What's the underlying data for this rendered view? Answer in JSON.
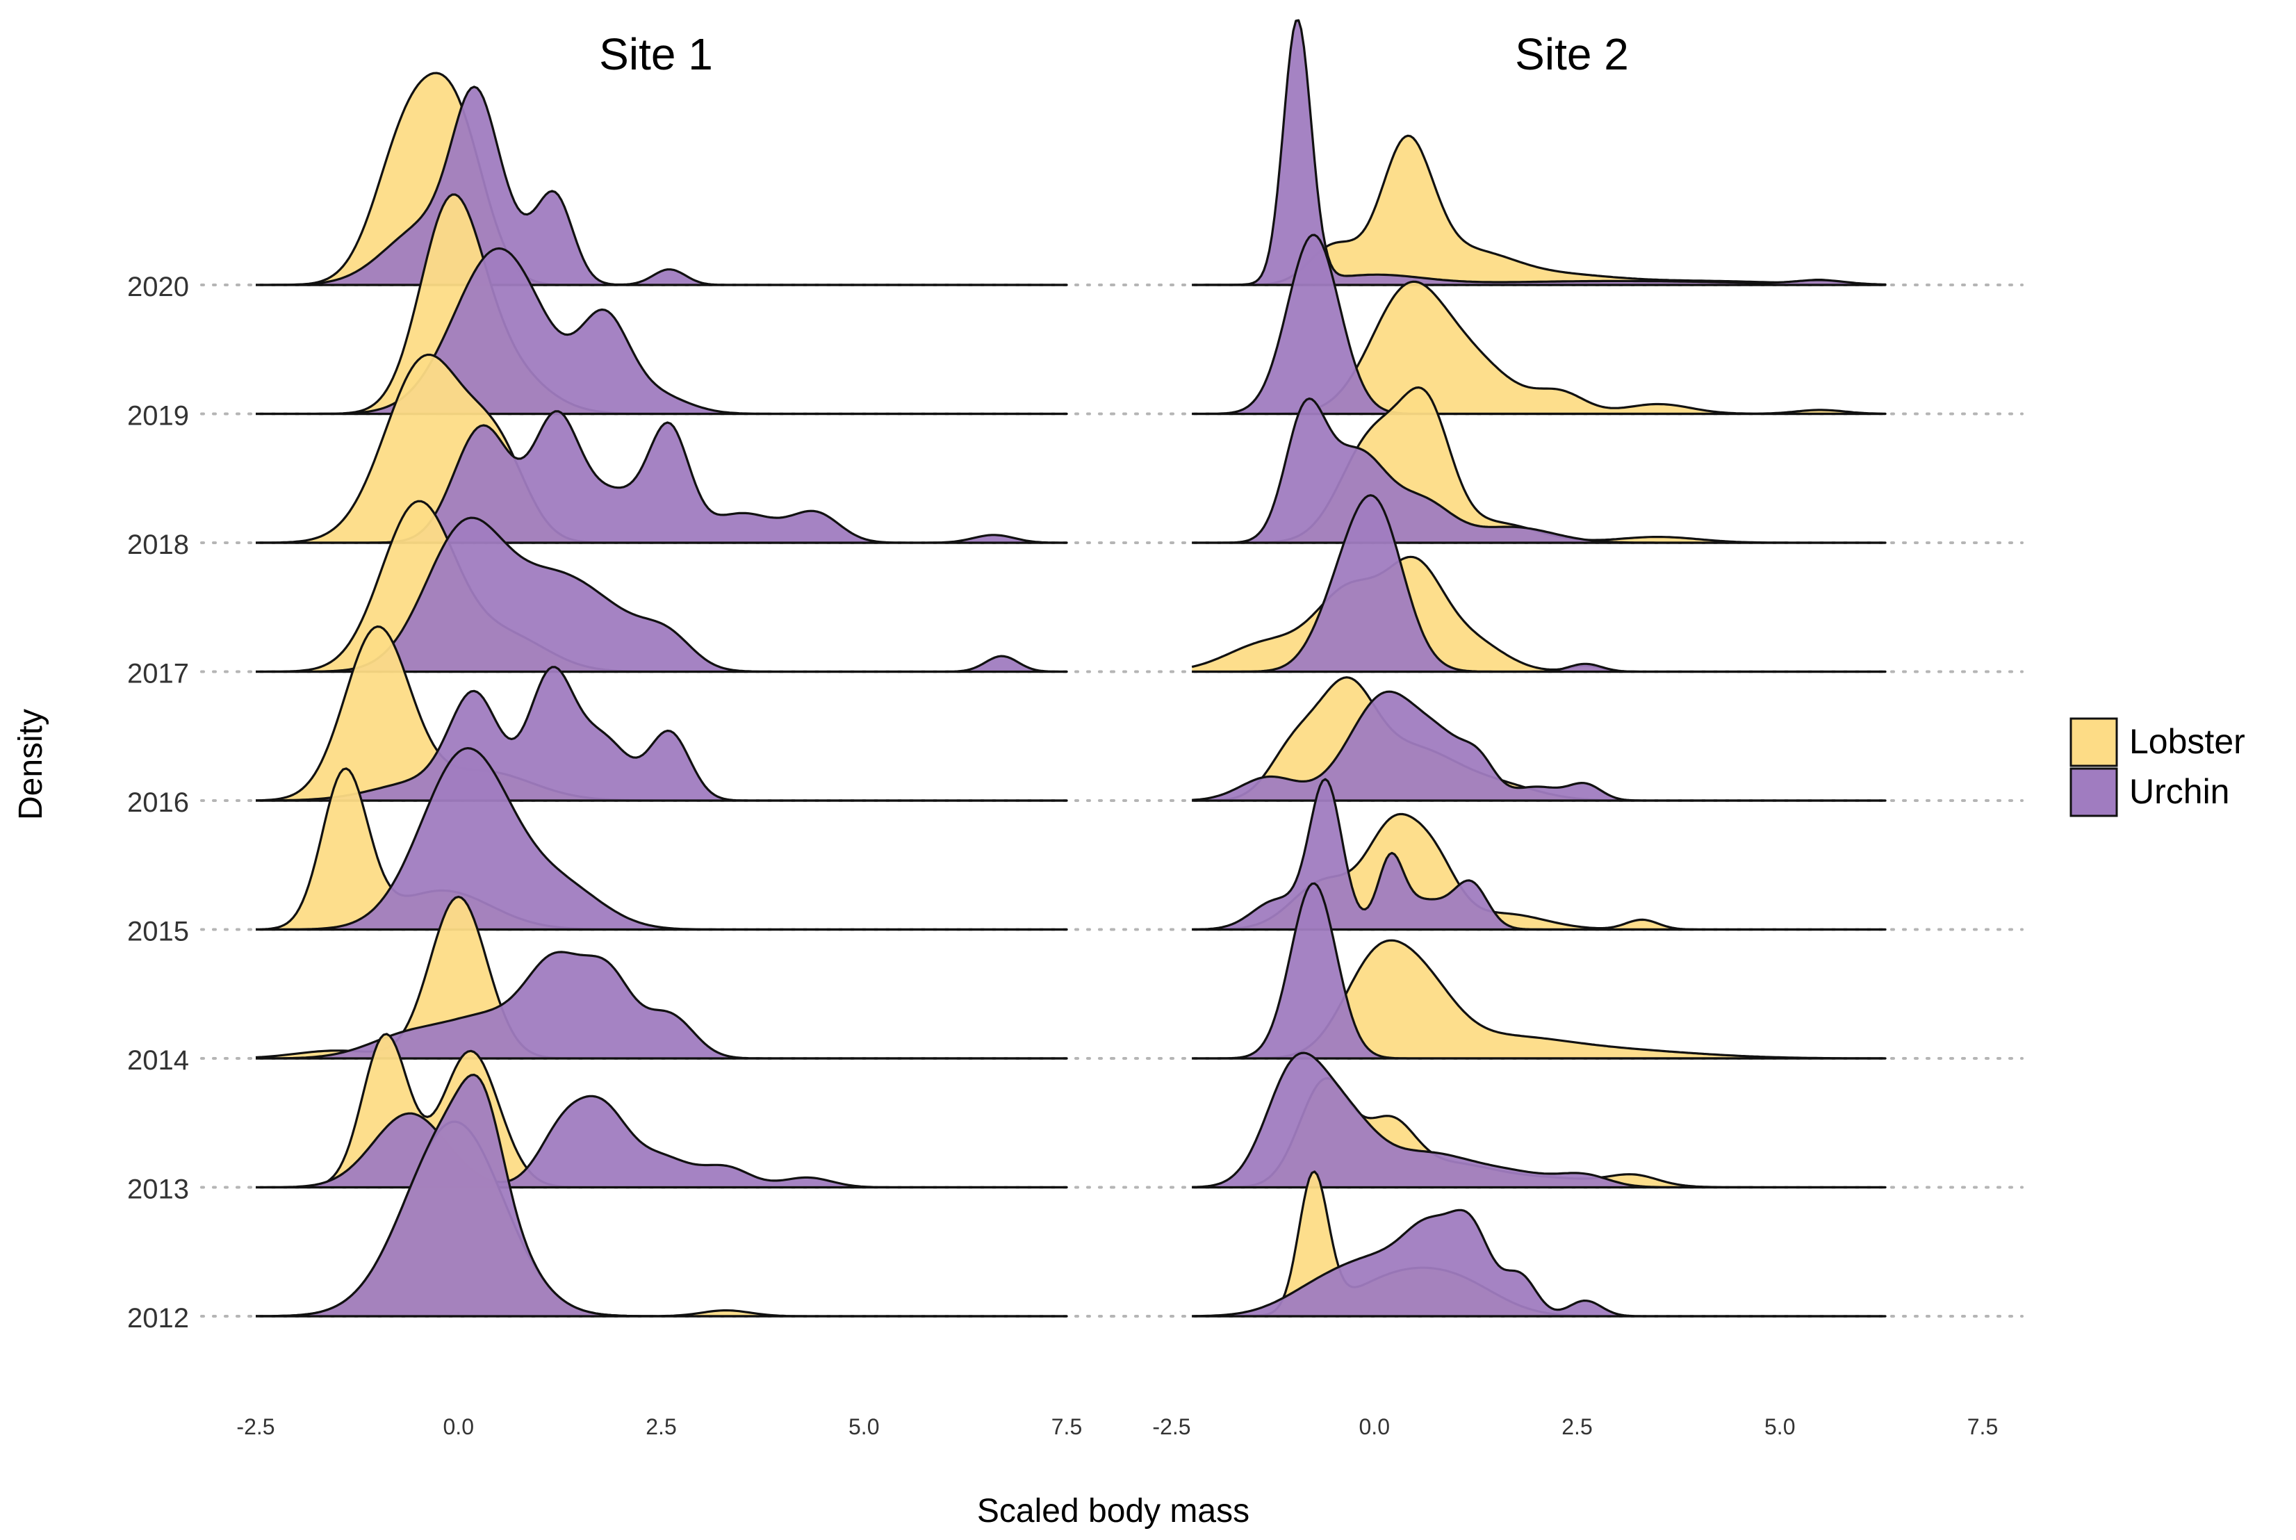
{
  "chart_data": {
    "type": "ridgeline-density",
    "facets": [
      "Site 1",
      "Site 2"
    ],
    "xlabel": "Scaled body mass",
    "ylabel": "Density",
    "xlim": [
      -2.5,
      7.5
    ],
    "x_ticks": [
      "-2.5",
      "0.0",
      "2.5",
      "5.0",
      "7.5"
    ],
    "y_categories": [
      "2012",
      "2013",
      "2014",
      "2015",
      "2016",
      "2017",
      "2018",
      "2019",
      "2020"
    ],
    "legend": {
      "position": "right",
      "entries": [
        {
          "name": "Lobster",
          "color": "#FDDC86"
        },
        {
          "name": "Urchin",
          "color": "#A07CC0"
        }
      ]
    },
    "colors": {
      "Lobster": "#FDDC86",
      "Urchin": "#A07CC0",
      "outline": "#111111"
    },
    "opacity": 0.95,
    "series": [
      {
        "site": 0,
        "year": "2012",
        "species": "Lobster",
        "range": [
          -2.5,
          7.5
        ],
        "comps": [
          [
            -0.05,
            0.6,
            1.0
          ],
          [
            3.3,
            0.3,
            0.03
          ]
        ]
      },
      {
        "site": 0,
        "year": "2012",
        "species": "Urchin",
        "range": [
          -2.5,
          7.5
        ],
        "comps": [
          [
            -0.05,
            0.6,
            1.0
          ],
          [
            0.3,
            0.25,
            0.35
          ]
        ]
      },
      {
        "site": 0,
        "year": "2013",
        "species": "Lobster",
        "range": [
          -2.5,
          7.5
        ],
        "comps": [
          [
            -0.9,
            0.28,
            0.78
          ],
          [
            0.15,
            0.35,
            0.7
          ]
        ]
      },
      {
        "site": 0,
        "year": "2013",
        "species": "Urchin",
        "range": [
          -2.5,
          7.5
        ],
        "comps": [
          [
            -0.6,
            0.45,
            0.38
          ],
          [
            1.3,
            0.3,
            0.3
          ],
          [
            1.8,
            0.3,
            0.35
          ],
          [
            2.5,
            0.35,
            0.15
          ],
          [
            3.3,
            0.3,
            0.1
          ],
          [
            4.3,
            0.3,
            0.05
          ]
        ]
      },
      {
        "site": 0,
        "year": "2014",
        "species": "Lobster",
        "range": [
          -2.5,
          7.5
        ],
        "comps": [
          [
            -1.5,
            0.5,
            0.04
          ],
          [
            0.0,
            0.35,
            0.83
          ]
        ]
      },
      {
        "site": 0,
        "year": "2014",
        "species": "Urchin",
        "range": [
          -2.5,
          7.5
        ],
        "comps": [
          [
            -0.6,
            0.5,
            0.12
          ],
          [
            0.4,
            0.5,
            0.2
          ],
          [
            1.2,
            0.35,
            0.45
          ],
          [
            1.85,
            0.3,
            0.4
          ],
          [
            2.6,
            0.3,
            0.22
          ]
        ]
      },
      {
        "site": 0,
        "year": "2015",
        "species": "Lobster",
        "range": [
          -2.5,
          7.5
        ],
        "comps": [
          [
            -1.4,
            0.28,
            0.8
          ],
          [
            -0.2,
            0.6,
            0.2
          ]
        ]
      },
      {
        "site": 0,
        "year": "2015",
        "species": "Urchin",
        "range": [
          -2.5,
          7.5
        ],
        "comps": [
          [
            0.1,
            0.55,
            0.92
          ],
          [
            1.3,
            0.5,
            0.2
          ]
        ]
      },
      {
        "site": 0,
        "year": "2016",
        "species": "Lobster",
        "range": [
          -2.5,
          7.5
        ],
        "comps": [
          [
            -1.0,
            0.4,
            0.88
          ],
          [
            0.3,
            0.6,
            0.15
          ]
        ]
      },
      {
        "site": 0,
        "year": "2016",
        "species": "Urchin",
        "range": [
          -2.5,
          7.5
        ],
        "comps": [
          [
            -0.4,
            0.6,
            0.1
          ],
          [
            0.2,
            0.3,
            0.5
          ],
          [
            1.15,
            0.28,
            0.65
          ],
          [
            1.8,
            0.3,
            0.3
          ],
          [
            2.6,
            0.25,
            0.35
          ]
        ]
      },
      {
        "site": 0,
        "year": "2017",
        "species": "Lobster",
        "range": [
          -2.5,
          7.5
        ],
        "comps": [
          [
            -0.5,
            0.45,
            0.86
          ],
          [
            0.6,
            0.5,
            0.18
          ]
        ]
      },
      {
        "site": 0,
        "year": "2017",
        "species": "Urchin",
        "range": [
          -2.5,
          7.5
        ],
        "comps": [
          [
            0.1,
            0.5,
            0.75
          ],
          [
            1.2,
            0.5,
            0.4
          ],
          [
            2.0,
            0.5,
            0.2
          ],
          [
            2.6,
            0.3,
            0.12
          ],
          [
            6.7,
            0.2,
            0.08
          ]
        ]
      },
      {
        "site": 0,
        "year": "2018",
        "species": "Lobster",
        "range": [
          -2.5,
          7.5
        ],
        "comps": [
          [
            -0.4,
            0.5,
            0.95
          ],
          [
            0.5,
            0.35,
            0.4
          ]
        ]
      },
      {
        "site": 0,
        "year": "2018",
        "species": "Urchin",
        "range": [
          -2.5,
          7.5
        ],
        "comps": [
          [
            0.3,
            0.35,
            0.6
          ],
          [
            1.2,
            0.28,
            0.6
          ],
          [
            2.6,
            0.25,
            0.55
          ],
          [
            1.9,
            0.4,
            0.25
          ],
          [
            3.5,
            0.4,
            0.15
          ],
          [
            4.4,
            0.3,
            0.15
          ],
          [
            6.6,
            0.25,
            0.04
          ]
        ]
      },
      {
        "site": 0,
        "year": "2019",
        "species": "Lobster",
        "range": [
          -2.5,
          7.5
        ],
        "comps": [
          [
            -0.1,
            0.38,
            1.0
          ],
          [
            0.5,
            0.5,
            0.25
          ]
        ]
      },
      {
        "site": 0,
        "year": "2019",
        "species": "Urchin",
        "range": [
          -2.5,
          7.5
        ],
        "comps": [
          [
            0.5,
            0.55,
            0.85
          ],
          [
            1.8,
            0.3,
            0.45
          ],
          [
            2.4,
            0.4,
            0.1
          ]
        ]
      },
      {
        "site": 0,
        "year": "2020",
        "species": "Lobster",
        "range": [
          -2.5,
          7.5
        ],
        "comps": [
          [
            -0.6,
            0.4,
            0.8
          ],
          [
            0.0,
            0.35,
            0.7
          ]
        ]
      },
      {
        "site": 0,
        "year": "2020",
        "species": "Urchin",
        "range": [
          -2.5,
          7.5
        ],
        "comps": [
          [
            -0.4,
            0.5,
            0.3
          ],
          [
            0.2,
            0.28,
            0.8
          ],
          [
            1.2,
            0.22,
            0.4
          ],
          [
            0.7,
            0.35,
            0.2
          ],
          [
            2.6,
            0.2,
            0.08
          ]
        ]
      },
      {
        "site": 1,
        "year": "2012",
        "species": "Lobster",
        "range": [
          -2.25,
          6.3
        ],
        "comps": [
          [
            -0.75,
            0.18,
            0.7
          ],
          [
            0.3,
            0.6,
            0.2
          ],
          [
            1.1,
            0.5,
            0.12
          ]
        ]
      },
      {
        "site": 1,
        "year": "2012",
        "species": "Urchin",
        "range": [
          -2.25,
          6.3
        ],
        "comps": [
          [
            -0.6,
            0.5,
            0.15
          ],
          [
            0.2,
            0.5,
            0.25
          ],
          [
            0.7,
            0.3,
            0.3
          ],
          [
            1.2,
            0.25,
            0.4
          ],
          [
            1.8,
            0.2,
            0.2
          ],
          [
            2.6,
            0.2,
            0.08
          ]
        ]
      },
      {
        "site": 1,
        "year": "2013",
        "species": "Lobster",
        "range": [
          -2.25,
          6.3
        ],
        "comps": [
          [
            -0.6,
            0.32,
            0.55
          ],
          [
            0.2,
            0.3,
            0.3
          ],
          [
            0.9,
            0.5,
            0.1
          ],
          [
            2.0,
            0.8,
            0.05
          ],
          [
            3.2,
            0.3,
            0.05
          ]
        ]
      },
      {
        "site": 1,
        "year": "2013",
        "species": "Urchin",
        "range": [
          -2.25,
          6.3
        ],
        "comps": [
          [
            -1.0,
            0.35,
            0.55
          ],
          [
            -0.4,
            0.4,
            0.35
          ],
          [
            0.6,
            0.5,
            0.15
          ],
          [
            1.6,
            0.6,
            0.08
          ],
          [
            2.6,
            0.3,
            0.05
          ]
        ]
      },
      {
        "site": 1,
        "year": "2014",
        "species": "Lobster",
        "range": [
          -2.25,
          6.3
        ],
        "comps": [
          [
            0.0,
            0.4,
            0.45
          ],
          [
            0.6,
            0.4,
            0.3
          ],
          [
            1.5,
            0.8,
            0.1
          ],
          [
            3.0,
            1.0,
            0.04
          ]
        ]
      },
      {
        "site": 1,
        "year": "2014",
        "species": "Urchin",
        "range": [
          -2.25,
          6.3
        ],
        "comps": [
          [
            -0.75,
            0.28,
            0.9
          ]
        ]
      },
      {
        "site": 1,
        "year": "2015",
        "species": "Lobster",
        "range": [
          -2.25,
          6.3
        ],
        "comps": [
          [
            -0.6,
            0.4,
            0.25
          ],
          [
            0.2,
            0.3,
            0.45
          ],
          [
            0.7,
            0.3,
            0.35
          ],
          [
            1.6,
            0.5,
            0.08
          ],
          [
            3.3,
            0.2,
            0.05
          ]
        ]
      },
      {
        "site": 1,
        "year": "2015",
        "species": "Urchin",
        "range": [
          -2.25,
          6.3
        ],
        "comps": [
          [
            -1.2,
            0.3,
            0.15
          ],
          [
            -0.6,
            0.2,
            0.75
          ],
          [
            0.2,
            0.15,
            0.3
          ],
          [
            1.2,
            0.2,
            0.2
          ],
          [
            0.6,
            0.4,
            0.15
          ]
        ]
      },
      {
        "site": 1,
        "year": "2016",
        "species": "Lobster",
        "range": [
          -2.25,
          6.3
        ],
        "comps": [
          [
            -1.0,
            0.3,
            0.25
          ],
          [
            -0.35,
            0.35,
            0.55
          ],
          [
            0.5,
            0.5,
            0.25
          ],
          [
            1.5,
            0.5,
            0.08
          ]
        ]
      },
      {
        "site": 1,
        "year": "2016",
        "species": "Urchin",
        "range": [
          -2.25,
          6.3
        ],
        "comps": [
          [
            -1.3,
            0.35,
            0.12
          ],
          [
            0.15,
            0.45,
            0.55
          ],
          [
            0.9,
            0.3,
            0.2
          ],
          [
            1.3,
            0.2,
            0.15
          ],
          [
            2.0,
            0.3,
            0.07
          ],
          [
            2.6,
            0.2,
            0.08
          ]
        ]
      },
      {
        "site": 1,
        "year": "2017",
        "species": "Lobster",
        "range": [
          -2.25,
          6.3
        ],
        "comps": [
          [
            -1.3,
            0.5,
            0.15
          ],
          [
            -0.3,
            0.4,
            0.4
          ],
          [
            0.5,
            0.35,
            0.5
          ],
          [
            1.2,
            0.4,
            0.15
          ],
          [
            2.6,
            0.2,
            0.03
          ]
        ]
      },
      {
        "site": 1,
        "year": "2017",
        "species": "Urchin",
        "range": [
          -2.25,
          6.3
        ],
        "comps": [
          [
            0.0,
            0.35,
            0.85
          ],
          [
            -0.5,
            0.3,
            0.2
          ],
          [
            2.6,
            0.2,
            0.04
          ]
        ]
      },
      {
        "site": 1,
        "year": "2018",
        "species": "Lobster",
        "range": [
          -2.25,
          6.3
        ],
        "comps": [
          [
            0.0,
            0.4,
            0.55
          ],
          [
            0.65,
            0.3,
            0.6
          ],
          [
            1.5,
            0.5,
            0.1
          ],
          [
            3.5,
            0.5,
            0.03
          ]
        ]
      },
      {
        "site": 1,
        "year": "2018",
        "species": "Urchin",
        "range": [
          -2.25,
          6.3
        ],
        "comps": [
          [
            -0.85,
            0.25,
            0.65
          ],
          [
            -0.2,
            0.35,
            0.45
          ],
          [
            0.6,
            0.35,
            0.2
          ],
          [
            1.7,
            0.5,
            0.08
          ]
        ]
      },
      {
        "site": 1,
        "year": "2019",
        "species": "Lobster",
        "range": [
          -2.25,
          6.3
        ],
        "comps": [
          [
            0.4,
            0.45,
            0.6
          ],
          [
            1.2,
            0.5,
            0.25
          ],
          [
            2.3,
            0.3,
            0.1
          ],
          [
            3.5,
            0.4,
            0.05
          ],
          [
            5.5,
            0.3,
            0.02
          ]
        ]
      },
      {
        "site": 1,
        "year": "2019",
        "species": "Urchin",
        "range": [
          -2.25,
          6.3
        ],
        "comps": [
          [
            -0.75,
            0.32,
            0.92
          ]
        ]
      },
      {
        "site": 1,
        "year": "2020",
        "species": "Lobster",
        "range": [
          -2.25,
          6.3
        ],
        "comps": [
          [
            -0.5,
            0.3,
            0.2
          ],
          [
            0.4,
            0.32,
            0.72
          ],
          [
            1.2,
            0.5,
            0.15
          ],
          [
            2.2,
            0.7,
            0.05
          ],
          [
            4.0,
            1.0,
            0.02
          ],
          [
            5.5,
            0.2,
            0.02
          ]
        ]
      },
      {
        "site": 1,
        "year": "2020",
        "species": "Urchin",
        "range": [
          -2.25,
          6.3
        ],
        "comps": [
          [
            -0.95,
            0.17,
            1.35
          ],
          [
            0.0,
            0.6,
            0.05
          ],
          [
            3.0,
            1.5,
            0.02
          ],
          [
            5.5,
            0.3,
            0.02
          ]
        ]
      }
    ]
  }
}
